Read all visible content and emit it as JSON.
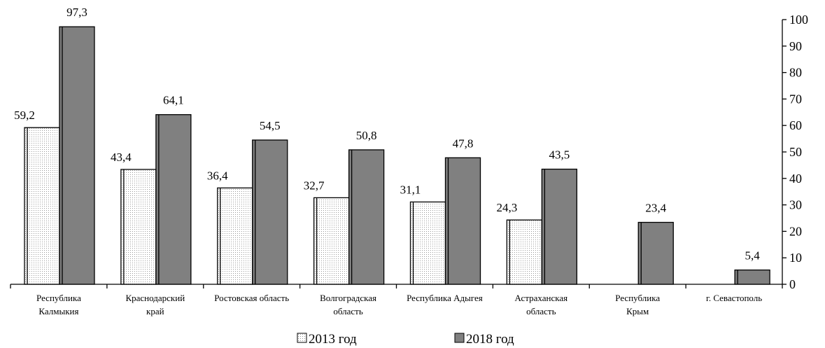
{
  "chart_data": {
    "type": "bar",
    "categories": [
      "Республика\nКалмыкия",
      "Краснодарский\nкрай",
      "Ростовская область",
      "Волгоградская\nобласть",
      "Республика Адыгея",
      "Астраханская\nобласть",
      "Республика\nКрым",
      "г. Севастополь"
    ],
    "series": [
      {
        "name": "2013 год",
        "color": "#eeeeee",
        "values": [
          59.2,
          43.4,
          36.4,
          32.7,
          31.1,
          24.3,
          null,
          null
        ],
        "value_labels": [
          "59,2",
          "43,4",
          "36,4",
          "32,7",
          "31,1",
          "24,3",
          null,
          null
        ]
      },
      {
        "name": "2018 год",
        "color": "#808080",
        "values": [
          97.3,
          64.1,
          54.5,
          50.8,
          47.8,
          43.5,
          23.4,
          5.4
        ],
        "value_labels": [
          "97,3",
          "64,1",
          "54,5",
          "50,8",
          "47,8",
          "43,5",
          "23,4",
          "5,4"
        ]
      }
    ],
    "ylim": [
      0,
      100
    ],
    "yticks": [
      0,
      10,
      20,
      30,
      40,
      50,
      60,
      70,
      80,
      90,
      100
    ],
    "grid": false
  }
}
